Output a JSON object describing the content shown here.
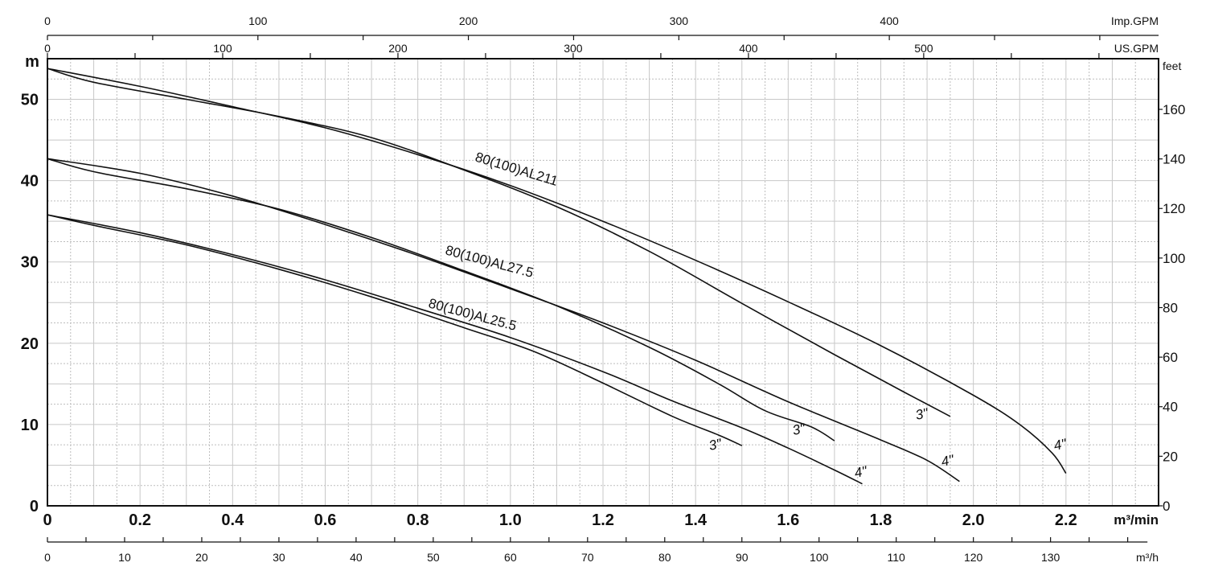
{
  "chart_data": {
    "type": "line",
    "title": "",
    "axes": {
      "x_main": {
        "unit": "m³/min",
        "range": [
          0,
          2.4
        ],
        "ticks": [
          "0",
          "0.2",
          "0.4",
          "0.6",
          "0.8",
          "1.0",
          "1.2",
          "1.4",
          "1.6",
          "1.8",
          "2.0",
          "2.2"
        ],
        "tick_values": [
          0,
          0.2,
          0.4,
          0.6,
          0.8,
          1.0,
          1.2,
          1.4,
          1.6,
          1.8,
          2.0,
          2.2
        ]
      },
      "x_m3h": {
        "unit": "m³/h",
        "ticks": [
          "0",
          "10",
          "20",
          "30",
          "40",
          "50",
          "60",
          "70",
          "80",
          "90",
          "100",
          "110",
          "120",
          "130"
        ],
        "tick_values": [
          0,
          10,
          20,
          30,
          40,
          50,
          60,
          70,
          80,
          90,
          100,
          110,
          120,
          130
        ]
      },
      "x_usgpm": {
        "unit": "US.GPM",
        "ticks": [
          "0",
          "100",
          "200",
          "300",
          "400",
          "500"
        ],
        "tick_values": [
          0,
          100,
          200,
          300,
          400,
          500
        ]
      },
      "x_impgpm": {
        "unit": "Imp.GPM",
        "ticks": [
          "0",
          "100",
          "200",
          "300",
          "400"
        ],
        "tick_values": [
          0,
          100,
          200,
          300,
          400
        ]
      },
      "y_main": {
        "unit": "m",
        "range": [
          0,
          55
        ],
        "ticks": [
          "0",
          "10",
          "20",
          "30",
          "40",
          "50"
        ],
        "tick_values": [
          0,
          10,
          20,
          30,
          40,
          50
        ]
      },
      "y_feet": {
        "unit": "feet",
        "ticks": [
          "0",
          "20",
          "40",
          "60",
          "80",
          "100",
          "120",
          "140",
          "160"
        ],
        "tick_values": [
          0,
          20,
          40,
          60,
          80,
          100,
          120,
          140,
          160
        ]
      }
    },
    "grid": true,
    "series": [
      {
        "name": "80(100)AL211",
        "end_label": "4\"",
        "points": [
          [
            0,
            53.8
          ],
          [
            0.2,
            51.6
          ],
          [
            0.4,
            49.1
          ],
          [
            0.6,
            46.5
          ],
          [
            0.8,
            43.2
          ],
          [
            1.0,
            39.4
          ],
          [
            1.2,
            35.0
          ],
          [
            1.4,
            30.2
          ],
          [
            1.6,
            25.1
          ],
          [
            1.8,
            19.7
          ],
          [
            2.0,
            13.6
          ],
          [
            2.1,
            10.0
          ],
          [
            2.17,
            6.5
          ],
          [
            2.2,
            4.0
          ]
        ]
      },
      {
        "name": "80(100)AL211",
        "end_label": "3\"",
        "points": [
          [
            0,
            53.8
          ],
          [
            0.1,
            52.1
          ],
          [
            0.3,
            50.0
          ],
          [
            0.5,
            47.9
          ],
          [
            0.7,
            45.3
          ],
          [
            0.9,
            41.3
          ],
          [
            1.1,
            36.8
          ],
          [
            1.3,
            31.3
          ],
          [
            1.5,
            24.9
          ],
          [
            1.7,
            18.6
          ],
          [
            1.85,
            14.0
          ],
          [
            1.95,
            11.0
          ]
        ]
      },
      {
        "name": "80(100)AL27.5",
        "end_label": "4\"",
        "points": [
          [
            0,
            42.7
          ],
          [
            0.2,
            40.9
          ],
          [
            0.4,
            38.1
          ],
          [
            0.6,
            34.6
          ],
          [
            0.8,
            30.8
          ],
          [
            1.0,
            26.7
          ],
          [
            1.2,
            22.5
          ],
          [
            1.4,
            17.9
          ],
          [
            1.6,
            12.8
          ],
          [
            1.8,
            8.1
          ],
          [
            1.9,
            5.6
          ],
          [
            1.97,
            3.0
          ]
        ]
      },
      {
        "name": "80(100)AL27.5",
        "end_label": "3\"",
        "points": [
          [
            0,
            42.7
          ],
          [
            0.1,
            41.1
          ],
          [
            0.3,
            39.0
          ],
          [
            0.5,
            36.5
          ],
          [
            0.7,
            33.0
          ],
          [
            0.9,
            28.9
          ],
          [
            1.1,
            24.6
          ],
          [
            1.3,
            19.5
          ],
          [
            1.45,
            15.0
          ],
          [
            1.55,
            11.7
          ],
          [
            1.65,
            9.7
          ],
          [
            1.7,
            8.0
          ]
        ]
      },
      {
        "name": "80(100)AL25.5",
        "end_label": "4\"",
        "points": [
          [
            0,
            35.8
          ],
          [
            0.2,
            33.6
          ],
          [
            0.4,
            30.9
          ],
          [
            0.6,
            27.8
          ],
          [
            0.8,
            24.3
          ],
          [
            1.0,
            20.7
          ],
          [
            1.2,
            16.5
          ],
          [
            1.35,
            12.9
          ],
          [
            1.5,
            9.6
          ],
          [
            1.6,
            7.1
          ],
          [
            1.7,
            4.4
          ],
          [
            1.76,
            2.7
          ]
        ]
      },
      {
        "name": "80(100)AL25.5",
        "end_label": "3\"",
        "points": [
          [
            0,
            35.8
          ],
          [
            0.1,
            34.5
          ],
          [
            0.3,
            32.1
          ],
          [
            0.5,
            29.1
          ],
          [
            0.7,
            25.7
          ],
          [
            0.9,
            21.9
          ],
          [
            1.05,
            19.0
          ],
          [
            1.2,
            15.1
          ],
          [
            1.35,
            11.0
          ],
          [
            1.45,
            8.7
          ],
          [
            1.5,
            7.4
          ]
        ]
      }
    ],
    "annotations": [
      "80(100)AL211",
      "80(100)AL27.5",
      "80(100)AL25.5",
      "3\"",
      "4\""
    ]
  }
}
